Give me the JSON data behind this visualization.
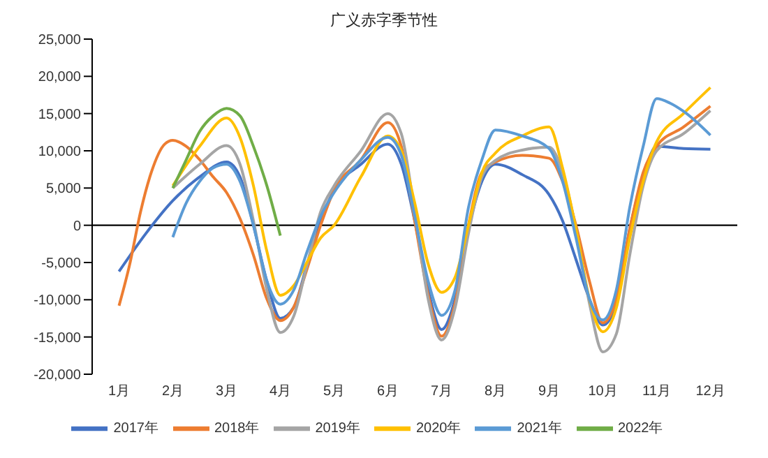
{
  "chart_data": {
    "type": "line",
    "title": "广义赤字季节性",
    "xlim": [
      0.5,
      12.5
    ],
    "xticks": [
      {
        "value": 1,
        "label": "1月"
      },
      {
        "value": 2,
        "label": "2月"
      },
      {
        "value": 3,
        "label": "3月"
      },
      {
        "value": 4,
        "label": "4月"
      },
      {
        "value": 5,
        "label": "5月"
      },
      {
        "value": 6,
        "label": "6月"
      },
      {
        "value": 7,
        "label": "7月"
      },
      {
        "value": 8,
        "label": "8月"
      },
      {
        "value": 9,
        "label": "9月"
      },
      {
        "value": 10,
        "label": "10月"
      },
      {
        "value": 11,
        "label": "11月"
      },
      {
        "value": 12,
        "label": "12月"
      }
    ],
    "ylim": [
      -20000,
      25000
    ],
    "yticks": [
      {
        "value": -20000,
        "label": "-20,000"
      },
      {
        "value": -15000,
        "label": "-15,000"
      },
      {
        "value": -10000,
        "label": "-10,000"
      },
      {
        "value": -5000,
        "label": "-5,000"
      },
      0,
      {
        "value": 5000,
        "label": "5,000"
      },
      {
        "value": 10000,
        "label": "10,000"
      },
      {
        "value": 15000,
        "label": "15,000"
      },
      {
        "value": 20000,
        "label": "20,000"
      },
      {
        "value": 25000,
        "label": "25,000"
      }
    ],
    "ref_lines": [
      {
        "axis": "y",
        "value": 0,
        "color": "#000000"
      }
    ],
    "grid": false,
    "legend": "bottom",
    "marker": "none",
    "line_style": "solid",
    "series": [
      {
        "name": "2017年",
        "color": "#4472c4",
        "x": [
          1,
          1.5,
          2,
          2.5,
          3,
          3.25,
          3.5,
          3.75,
          4,
          4.25,
          4.5,
          4.75,
          5,
          5.5,
          6,
          6.25,
          6.5,
          6.75,
          7,
          7.25,
          7.5,
          7.75,
          8,
          8.5,
          9,
          9.25,
          9.5,
          9.75,
          10,
          10.25,
          10.5,
          10.75,
          11,
          11.5,
          12
        ],
        "values": [
          -6200,
          -1100,
          3300,
          6500,
          8500,
          6500,
          0,
          -7500,
          -12500,
          -11000,
          -5200,
          600,
          4700,
          8200,
          10900,
          8200,
          600,
          -8700,
          -14000,
          -9900,
          -500,
          5900,
          8200,
          6800,
          4100,
          600,
          -4600,
          -9900,
          -13400,
          -10500,
          -500,
          6500,
          10600,
          10300,
          10200
        ]
      },
      {
        "name": "2018年",
        "color": "#ed7d31",
        "x": [
          1,
          1.2,
          1.4,
          1.6,
          1.85,
          2,
          2.25,
          2.5,
          2.75,
          3,
          3.25,
          3.5,
          3.75,
          4,
          4.25,
          4.5,
          4.75,
          5,
          5.5,
          6,
          6.25,
          6.5,
          6.75,
          7,
          7.25,
          7.5,
          7.75,
          8,
          8.5,
          9,
          9.25,
          9.5,
          9.75,
          10,
          10.25,
          10.5,
          10.75,
          11,
          11.5,
          12
        ],
        "values": [
          -10800,
          -5200,
          1800,
          7100,
          10900,
          11400,
          10600,
          8800,
          6500,
          4400,
          900,
          -4000,
          -9900,
          -12800,
          -11000,
          -5800,
          0,
          4700,
          8800,
          13800,
          10600,
          600,
          -9300,
          -14900,
          -10500,
          0,
          7100,
          8500,
          9400,
          9000,
          5900,
          0,
          -7500,
          -13100,
          -9900,
          -500,
          7100,
          10600,
          13200,
          16000
        ]
      },
      {
        "name": "2019年",
        "color": "#a5a5a5",
        "x": [
          2,
          2.5,
          3,
          3.25,
          3.5,
          3.75,
          4,
          4.25,
          4.5,
          4.75,
          5,
          5.5,
          6,
          6.25,
          6.5,
          6.75,
          7,
          7.25,
          7.5,
          7.75,
          8,
          8.5,
          9,
          9.25,
          9.5,
          9.75,
          10,
          10.25,
          10.5,
          10.75,
          11,
          11.5,
          12
        ],
        "values": [
          5000,
          8200,
          10700,
          8200,
          600,
          -8700,
          -14400,
          -12200,
          -5200,
          1800,
          5300,
          10000,
          15000,
          12300,
          1800,
          -9900,
          -15400,
          -11100,
          -1100,
          6500,
          8700,
          10100,
          10500,
          7100,
          -500,
          -10500,
          -17000,
          -14600,
          -4000,
          5300,
          10000,
          12300,
          15400
        ]
      },
      {
        "name": "2020年",
        "color": "#ffc000",
        "x": [
          2,
          2.5,
          3,
          3.25,
          3.5,
          3.75,
          4,
          4.25,
          4.5,
          4.75,
          5,
          5.5,
          6,
          6.25,
          6.5,
          6.75,
          7,
          7.25,
          7.5,
          7.75,
          8,
          8.5,
          9,
          9.25,
          9.5,
          9.75,
          10,
          10.25,
          10.5,
          10.75,
          11,
          11.5,
          12
        ],
        "values": [
          5300,
          10600,
          14400,
          11800,
          5300,
          -3500,
          -9400,
          -8100,
          -4900,
          -1700,
          0,
          6500,
          12000,
          10000,
          3000,
          -5200,
          -9000,
          -7000,
          0,
          7100,
          9700,
          12000,
          13200,
          7700,
          -500,
          -9900,
          -14300,
          -11100,
          -1700,
          5900,
          11200,
          15000,
          18500
        ]
      },
      {
        "name": "2021年",
        "color": "#5b9bd5",
        "x": [
          2,
          2.25,
          2.5,
          2.75,
          3,
          3.25,
          3.5,
          3.75,
          4,
          4.25,
          4.5,
          4.75,
          5,
          5.5,
          6,
          6.25,
          6.5,
          6.75,
          7,
          7.25,
          7.5,
          7.75,
          8,
          8.5,
          9,
          9.25,
          9.5,
          9.75,
          10,
          10.25,
          10.5,
          10.75,
          11,
          11.25,
          11.5,
          12
        ],
        "values": [
          -1600,
          3000,
          5900,
          7700,
          8200,
          5900,
          0,
          -7500,
          -10600,
          -8700,
          -3500,
          1200,
          4400,
          8800,
          11800,
          9400,
          1200,
          -7500,
          -12100,
          -8700,
          2400,
          8800,
          12800,
          12000,
          10300,
          5900,
          -1700,
          -9900,
          -12700,
          -8700,
          2400,
          10600,
          17000,
          16400,
          15300,
          12100
        ]
      },
      {
        "name": "2022年",
        "color": "#70ad47",
        "x": [
          2,
          2.25,
          2.5,
          2.75,
          3,
          3.25,
          3.5,
          3.75,
          4
        ],
        "values": [
          5000,
          8800,
          12600,
          14700,
          15700,
          14700,
          10600,
          5300,
          -1400
        ]
      }
    ]
  }
}
